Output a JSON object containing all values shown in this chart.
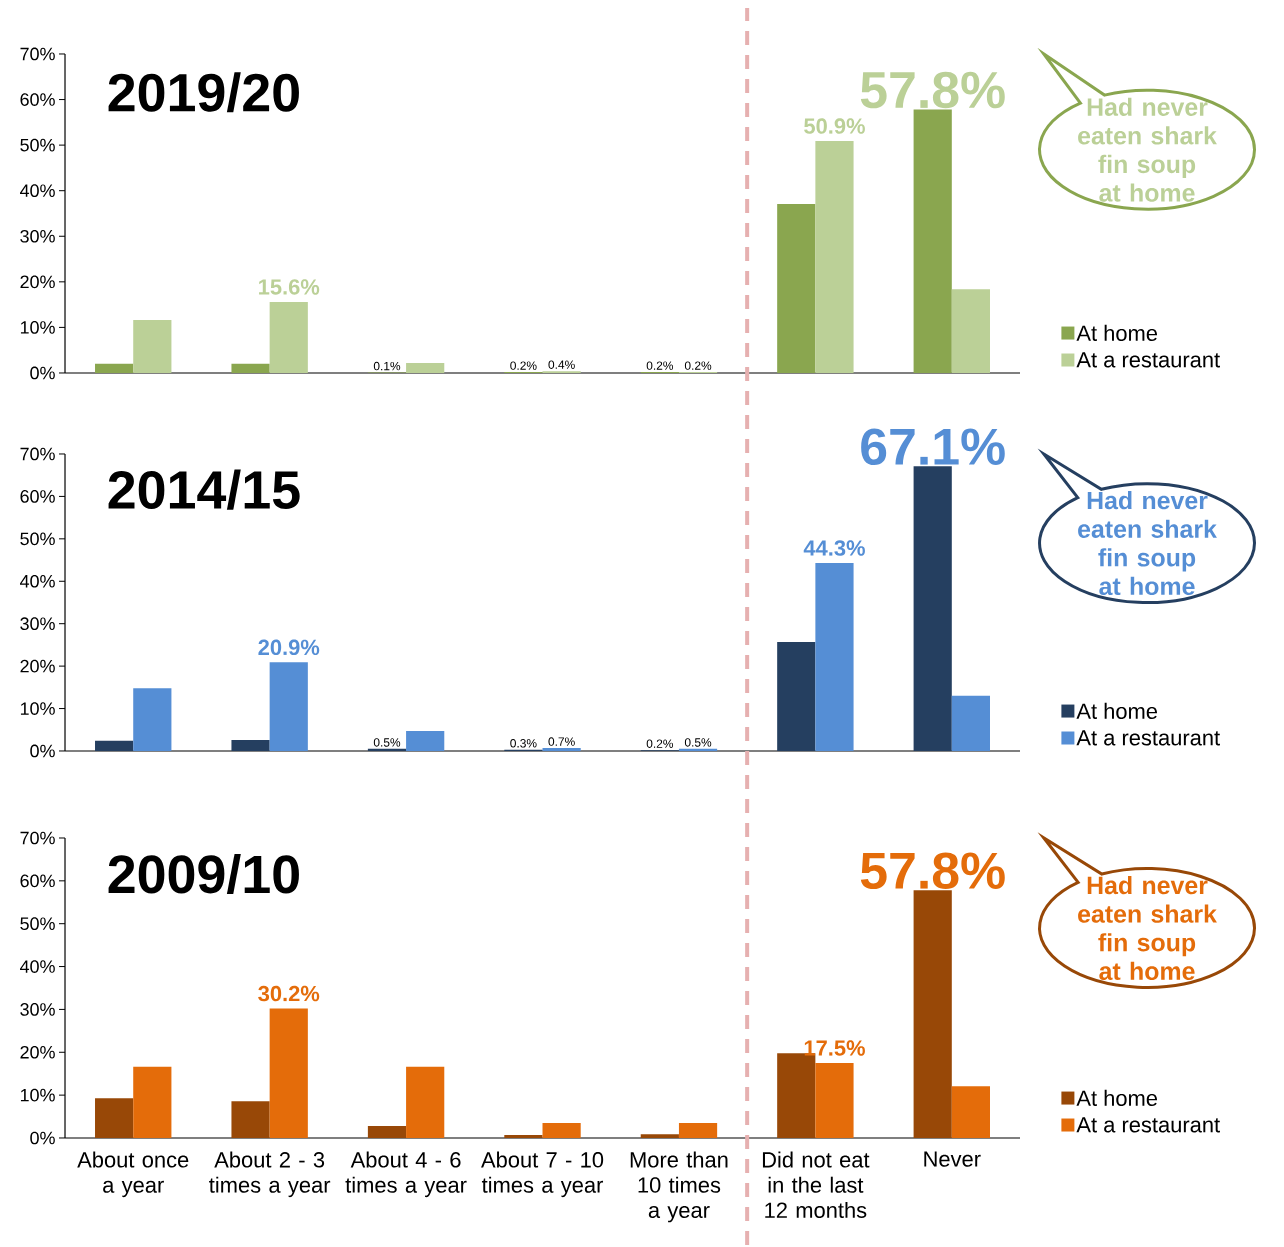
{
  "chart_data": [
    {
      "type": "bar",
      "title": "2019/20",
      "categories": [
        null,
        null,
        null,
        null,
        null,
        null,
        null
      ],
      "series": [
        {
          "name": "At home",
          "color": "#8aa64f",
          "values": [
            2.0,
            2.0,
            0.1,
            0.2,
            0.2,
            37.1,
            57.8
          ],
          "value_labels": [
            null,
            null,
            "0.1%",
            "0.2%",
            "0.2%",
            null,
            "57.8%"
          ]
        },
        {
          "name": "At a restaurant",
          "color": "#bbd097",
          "values": [
            11.6,
            15.6,
            2.2,
            0.4,
            0.2,
            50.9,
            18.4
          ],
          "value_labels": [
            null,
            "15.6%",
            null,
            "0.4%",
            "0.2%",
            "50.9%",
            null
          ]
        }
      ],
      "ylim": [
        0,
        70
      ],
      "yticks": [
        {
          "value": 0,
          "label": "0%"
        },
        {
          "value": 10,
          "label": "10%"
        },
        {
          "value": 20,
          "label": "20%"
        },
        {
          "value": 30,
          "label": "30%"
        },
        {
          "value": 40,
          "label": "40%"
        },
        {
          "value": 50,
          "label": "50%"
        },
        {
          "value": 60,
          "label": "60%"
        },
        {
          "value": 70,
          "label": "70%"
        }
      ],
      "tick_labels": "y",
      "legend": "bottom right",
      "annotations": [
        "Had never eaten shark fin soup at home"
      ]
    },
    {
      "type": "bar",
      "title": "2014/15",
      "categories": [
        null,
        null,
        null,
        null,
        null,
        null,
        null
      ],
      "series": [
        {
          "name": "At home",
          "color": "#253f60",
          "values": [
            2.4,
            2.6,
            0.5,
            0.3,
            0.2,
            25.7,
            67.1
          ],
          "value_labels": [
            null,
            null,
            "0.5%",
            "0.3%",
            "0.2%",
            null,
            "67.1%"
          ]
        },
        {
          "name": "At a restaurant",
          "color": "#558ed5",
          "values": [
            14.8,
            20.9,
            4.7,
            0.7,
            0.5,
            44.3,
            13.0
          ],
          "value_labels": [
            null,
            "20.9%",
            null,
            "0.7%",
            "0.5%",
            "44.3%",
            null
          ]
        }
      ],
      "ylim": [
        0,
        70
      ],
      "yticks": [
        {
          "value": 0,
          "label": "0%"
        },
        {
          "value": 10,
          "label": "10%"
        },
        {
          "value": 20,
          "label": "20%"
        },
        {
          "value": 30,
          "label": "30%"
        },
        {
          "value": 40,
          "label": "40%"
        },
        {
          "value": 50,
          "label": "50%"
        },
        {
          "value": 60,
          "label": "60%"
        },
        {
          "value": 70,
          "label": "70%"
        }
      ],
      "tick_labels": "y",
      "legend": "bottom right",
      "annotations": [
        "Had never eaten shark fin soup at home"
      ]
    },
    {
      "type": "bar",
      "title": "2009/10",
      "categories": [
        "About once a year",
        "About 2 - 3 times a year",
        "About 4 - 6 times a year",
        "About 7 - 10 times a year",
        "More than 10 times a year",
        "Did not eat in the last 12 months",
        "Never"
      ],
      "series": [
        {
          "name": "At home",
          "color": "#984807",
          "values": [
            9.3,
            8.6,
            2.8,
            0.7,
            0.9,
            19.8,
            57.8
          ],
          "value_labels": [
            null,
            null,
            null,
            null,
            null,
            null,
            "57.8%"
          ]
        },
        {
          "name": "At a restaurant",
          "color": "#e46c0a",
          "values": [
            16.6,
            30.2,
            16.6,
            3.5,
            3.5,
            17.5,
            12.1
          ],
          "value_labels": [
            null,
            "30.2%",
            null,
            null,
            null,
            "17.5%",
            null
          ]
        }
      ],
      "ylim": [
        0,
        70
      ],
      "yticks": [
        {
          "value": 0,
          "label": "0%"
        },
        {
          "value": 10,
          "label": "10%"
        },
        {
          "value": 20,
          "label": "20%"
        },
        {
          "value": 30,
          "label": "30%"
        },
        {
          "value": 40,
          "label": "40%"
        },
        {
          "value": 50,
          "label": "50%"
        },
        {
          "value": 60,
          "label": "60%"
        },
        {
          "value": 70,
          "label": "70%"
        }
      ],
      "legend": "bottom right",
      "annotations": [
        "Had never eaten shark fin soup at home"
      ]
    }
  ]
}
